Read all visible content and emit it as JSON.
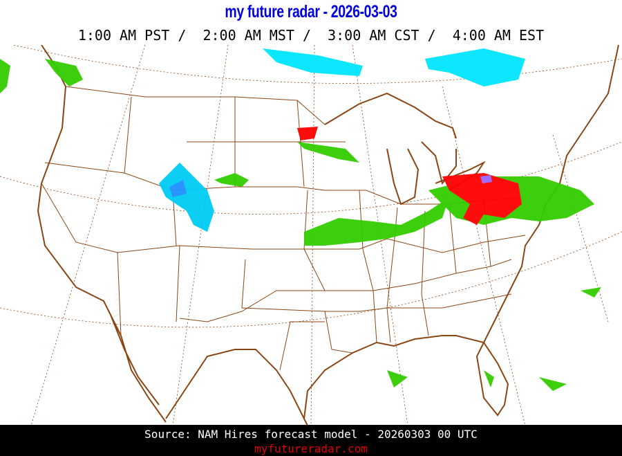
{
  "header": {
    "title": "my future radar - 2026-03-03",
    "times": "1:00 AM PST /  2:00 AM MST /  3:00 AM CST /  4:00 AM EST"
  },
  "map": {
    "region": "Continental United States",
    "layers": [
      "state-boundaries",
      "coastlines",
      "lat-lon-gridlines",
      "forecast-precipitation"
    ],
    "colors": {
      "boundary": "#8b4513",
      "grid": "#8b4513",
      "rain_light": "#33cc00",
      "rain_medium": "#ffff00",
      "snow_light": "#00e5ff",
      "snow_medium": "#1e90ff",
      "mixed": "#ff0000",
      "heavy_mixed": "#9966ff"
    }
  },
  "footer": {
    "source": "Source: NAM Hires forecast model - 20260303 00 UTC",
    "site": "myfutureradar.com"
  }
}
